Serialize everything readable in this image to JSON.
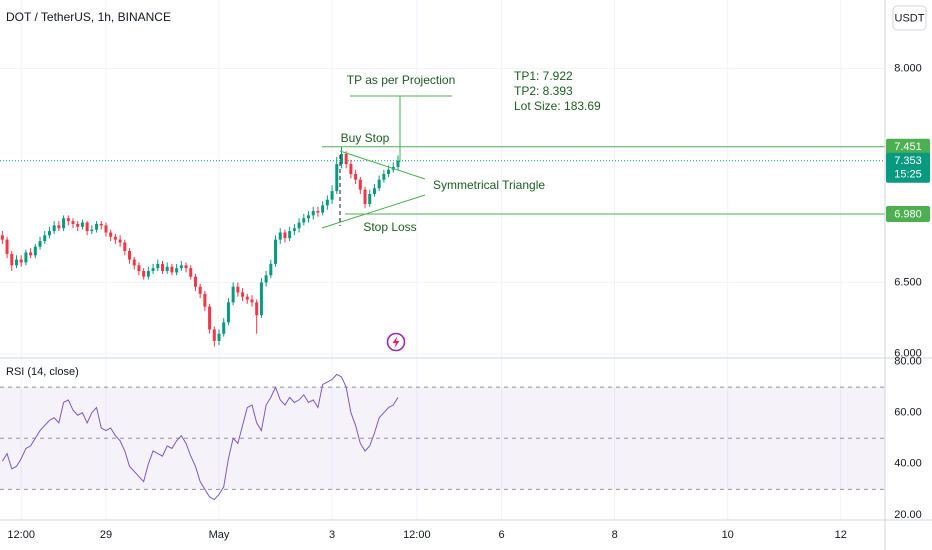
{
  "chart_data": {
    "type": "candlestick",
    "title": "DOT / TetherUS, 1h, BINANCE",
    "currency": "USDT",
    "xlim": [
      -0.5,
      187.4
    ],
    "xticks": [
      {
        "value": 4,
        "label": "12:00"
      },
      {
        "value": 22,
        "label": "29"
      },
      {
        "value": 46,
        "label": "May"
      },
      {
        "value": 70,
        "label": "3"
      },
      {
        "value": 88,
        "label": "12:00"
      },
      {
        "value": 106,
        "label": "6"
      },
      {
        "value": 130,
        "label": "8"
      },
      {
        "value": 154,
        "label": "10"
      },
      {
        "value": 178,
        "label": "12"
      }
    ],
    "ylim": [
      5.97,
      8.48
    ],
    "yticks": [
      {
        "value": 6,
        "label": "6.000"
      },
      {
        "value": 6.5,
        "label": "6.500"
      },
      {
        "value": 8,
        "label": "8.000"
      }
    ],
    "grid": true,
    "colors": {
      "up": "#089981",
      "down": "#f23645"
    },
    "candles": {
      "open": [
        6.83,
        6.8,
        6.7,
        6.62,
        6.66,
        6.64,
        6.71,
        6.69,
        6.75,
        6.79,
        6.83,
        6.86,
        6.9,
        6.88,
        6.95,
        6.93,
        6.91,
        6.89,
        6.92,
        6.86,
        6.87,
        6.91,
        6.9,
        6.85,
        6.82,
        6.8,
        6.78,
        6.72,
        6.66,
        6.62,
        6.58,
        6.54,
        6.58,
        6.6,
        6.63,
        6.58,
        6.61,
        6.57,
        6.6,
        6.62,
        6.6,
        6.54,
        6.47,
        6.42,
        6.33,
        6.17,
        6.09,
        6.14,
        6.22,
        6.36,
        6.47,
        6.43,
        6.4,
        6.38,
        6.36,
        6.27,
        6.5,
        6.55,
        6.63,
        6.8,
        6.85,
        6.81,
        6.86,
        6.88,
        6.92,
        6.95,
        6.97,
        7.0,
        6.99,
        7.04,
        7.08,
        7.14,
        7.33,
        7.4,
        7.33,
        7.26,
        7.22,
        7.15,
        7.05,
        7.12,
        7.16,
        7.22,
        7.26,
        7.29,
        7.31
      ],
      "high": [
        6.86,
        6.82,
        6.72,
        6.69,
        6.69,
        6.73,
        6.74,
        6.77,
        6.82,
        6.86,
        6.89,
        6.93,
        6.93,
        6.97,
        6.97,
        6.95,
        6.93,
        6.94,
        6.93,
        6.9,
        6.93,
        6.93,
        6.92,
        6.87,
        6.84,
        6.83,
        6.8,
        6.74,
        6.68,
        6.64,
        6.6,
        6.61,
        6.63,
        6.66,
        6.65,
        6.64,
        6.63,
        6.63,
        6.65,
        6.64,
        6.62,
        6.56,
        6.49,
        6.44,
        6.35,
        6.19,
        6.17,
        6.25,
        6.39,
        6.5,
        6.5,
        6.46,
        6.42,
        6.41,
        6.38,
        6.53,
        6.58,
        6.66,
        6.83,
        6.88,
        6.87,
        6.89,
        6.91,
        6.95,
        6.98,
        7.0,
        7.03,
        7.03,
        7.07,
        7.11,
        7.18,
        7.38,
        7.45,
        7.42,
        7.36,
        7.29,
        7.24,
        7.17,
        7.15,
        7.19,
        7.25,
        7.29,
        7.32,
        7.34,
        7.39
      ],
      "low": [
        6.77,
        6.67,
        6.58,
        6.6,
        6.61,
        6.62,
        6.67,
        6.67,
        6.73,
        6.77,
        6.81,
        6.84,
        6.86,
        6.86,
        6.9,
        6.88,
        6.86,
        6.87,
        6.83,
        6.84,
        6.85,
        6.87,
        6.82,
        6.79,
        6.77,
        6.75,
        6.69,
        6.63,
        6.59,
        6.55,
        6.52,
        6.52,
        6.56,
        6.58,
        6.56,
        6.56,
        6.55,
        6.55,
        6.58,
        6.57,
        6.52,
        6.44,
        6.39,
        6.3,
        6.14,
        6.05,
        6.06,
        6.12,
        6.2,
        6.34,
        6.4,
        6.37,
        6.35,
        6.33,
        6.14,
        6.25,
        6.47,
        6.53,
        6.61,
        6.77,
        6.78,
        6.79,
        6.83,
        6.85,
        6.9,
        6.92,
        6.94,
        6.96,
        6.97,
        7.01,
        7.05,
        7.12,
        7.3,
        7.3,
        7.23,
        7.19,
        7.12,
        7.02,
        7.03,
        7.1,
        7.14,
        7.2,
        7.24,
        7.27,
        7.29
      ],
      "close": [
        6.8,
        6.7,
        6.62,
        6.66,
        6.64,
        6.71,
        6.69,
        6.75,
        6.79,
        6.83,
        6.86,
        6.9,
        6.88,
        6.95,
        6.93,
        6.91,
        6.89,
        6.92,
        6.86,
        6.87,
        6.91,
        6.9,
        6.85,
        6.82,
        6.8,
        6.78,
        6.72,
        6.66,
        6.62,
        6.58,
        6.54,
        6.58,
        6.6,
        6.63,
        6.58,
        6.61,
        6.57,
        6.6,
        6.62,
        6.6,
        6.54,
        6.47,
        6.42,
        6.33,
        6.17,
        6.09,
        6.14,
        6.22,
        6.36,
        6.47,
        6.43,
        6.4,
        6.38,
        6.36,
        6.27,
        6.5,
        6.55,
        6.63,
        6.8,
        6.85,
        6.81,
        6.86,
        6.88,
        6.92,
        6.95,
        6.97,
        7.0,
        6.99,
        7.04,
        7.08,
        7.14,
        7.33,
        7.4,
        7.33,
        7.26,
        7.22,
        7.15,
        7.05,
        7.12,
        7.16,
        7.22,
        7.26,
        7.29,
        7.31,
        7.353
      ]
    },
    "price_lines": [
      {
        "label": "Buy Stop",
        "value": 7.451,
        "value_label": "7.451",
        "color": "#4caf50"
      },
      {
        "label": "Stop Loss",
        "value": 6.98,
        "value_label": "6.980",
        "color": "#4caf50"
      }
    ],
    "last_price": {
      "value": 7.353,
      "countdown": "15:25",
      "color": "#089981"
    },
    "annotations": {
      "projection": "TP as per Projection",
      "pattern": "Symmetrical Triangle"
    },
    "tp_note": [
      "TP1: 7.922",
      "TP2: 8.393",
      "Lot Size: 183.69"
    ],
    "indicator": {
      "title": "RSI (14, close)",
      "color": "#7e57c2",
      "ylim": [
        18,
        81.4
      ],
      "yticks": [
        {
          "value": 20,
          "label": "20.00"
        },
        {
          "value": 40,
          "label": "40.00"
        },
        {
          "value": 60,
          "label": "60.00"
        },
        {
          "value": 80,
          "label": "80.00"
        }
      ],
      "levels": [
        70,
        50,
        30
      ],
      "values": [
        41,
        44,
        38,
        39,
        42,
        46,
        47,
        50,
        53,
        55,
        57,
        58,
        56,
        64,
        65,
        61,
        59,
        60,
        56,
        60,
        62,
        54,
        53,
        54,
        51,
        49,
        45,
        39,
        37,
        35,
        33,
        40,
        45,
        44,
        43,
        47,
        46,
        49,
        51,
        48,
        43,
        39,
        33,
        30,
        27,
        26,
        28,
        31,
        42,
        50,
        48,
        55,
        62,
        63,
        56,
        53,
        63,
        66,
        70,
        65,
        63,
        66,
        64,
        65,
        67,
        64,
        65,
        62,
        71,
        72,
        73,
        75,
        74,
        70,
        60,
        55,
        48,
        45,
        47,
        52,
        58,
        60,
        62,
        63,
        66
      ]
    }
  }
}
